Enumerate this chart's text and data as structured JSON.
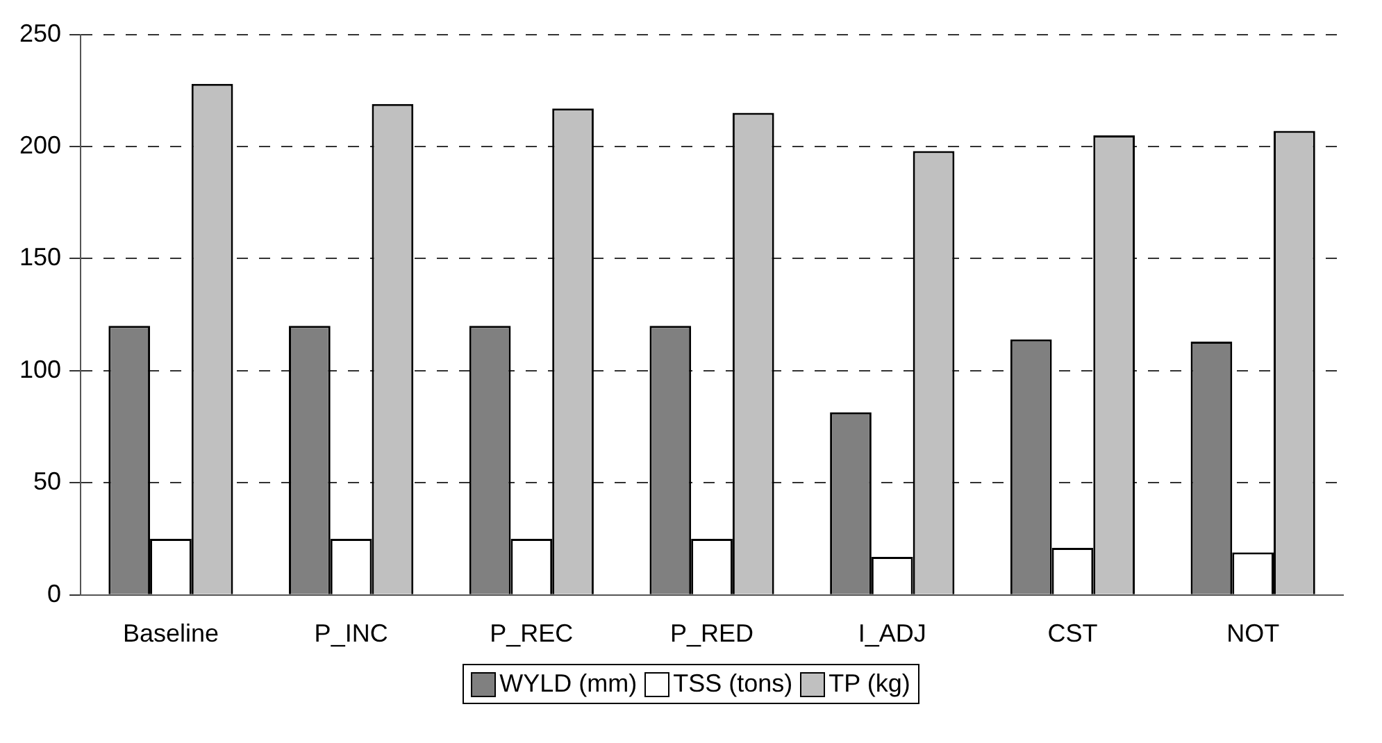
{
  "chart_data": {
    "type": "bar",
    "categories": [
      "Baseline",
      "P_INC",
      "P_REC",
      "P_RED",
      "I_ADJ",
      "CST",
      "NOT"
    ],
    "series": [
      {
        "name": "WYLD (mm)",
        "color": "#808080",
        "values": [
          120,
          120,
          120,
          120,
          81.5,
          114,
          113
        ]
      },
      {
        "name": "TSS (tons)",
        "color": "#ffffff",
        "values": [
          25,
          25,
          25,
          25,
          17,
          21,
          19
        ]
      },
      {
        "name": "TP (kg)",
        "color": "#c0c0c0",
        "values": [
          228,
          219,
          217,
          215,
          198,
          205,
          207
        ]
      }
    ],
    "ylim": [
      0,
      250
    ],
    "yticks": [
      0,
      50,
      100,
      150,
      200,
      250
    ],
    "grid": "y",
    "legend": "bottom"
  }
}
